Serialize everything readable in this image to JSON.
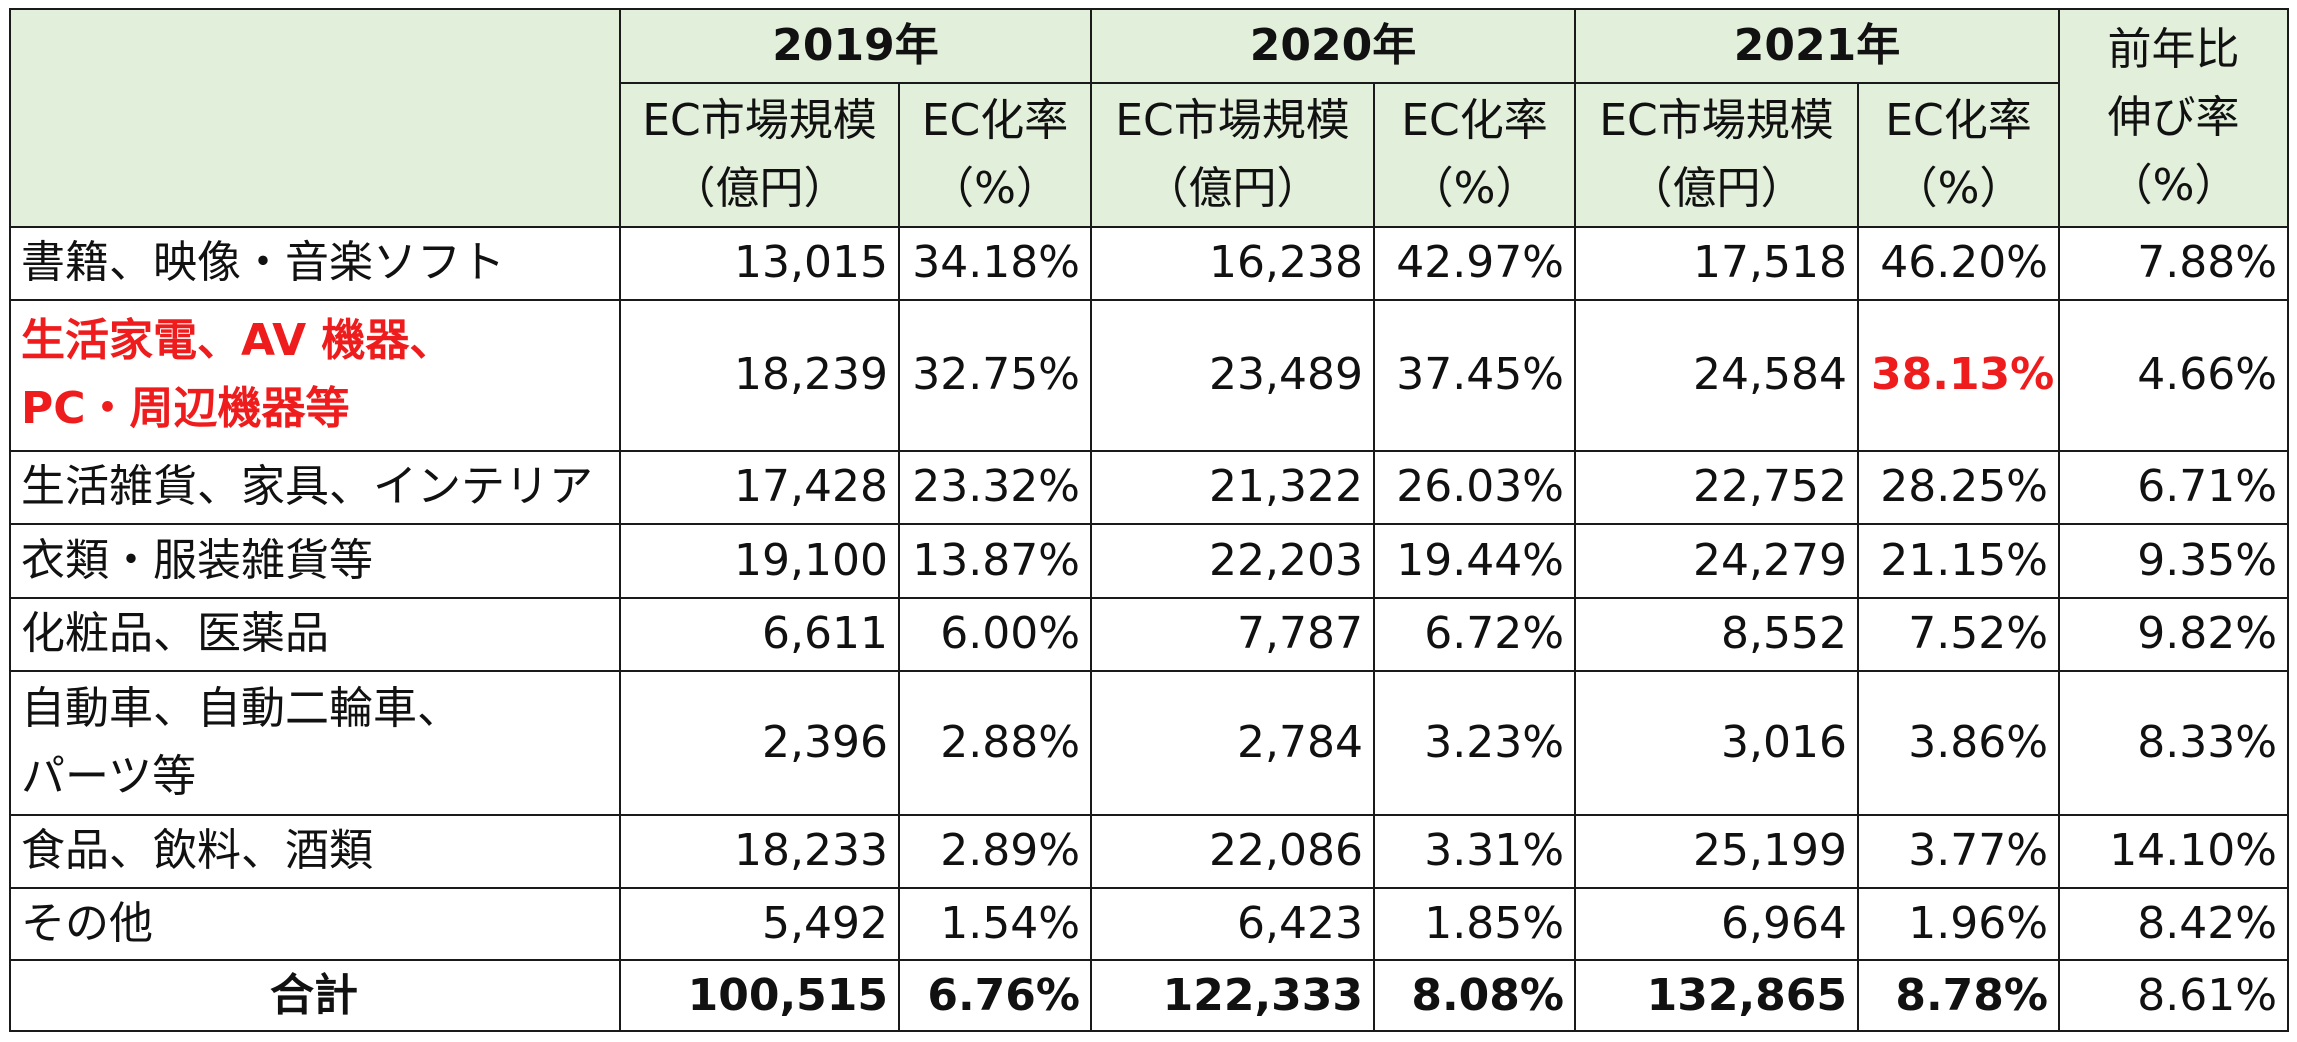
{
  "header": {
    "years": [
      "2019年",
      "2020年",
      "2021年"
    ],
    "market_size_label": "EC市場規模",
    "market_size_unit": "（億円）",
    "ec_rate_label": "EC化率",
    "ec_rate_unit": "（%）",
    "growth_label_1": "前年比",
    "growth_label_2": "伸び率",
    "growth_unit": "（%）"
  },
  "rows": [
    {
      "name_1": "書籍、映像・音楽ソフト",
      "name_2": "",
      "v2019": "13,015",
      "r2019": "34.18%",
      "v2020": "16,238",
      "r2020": "42.97%",
      "v2021": "17,518",
      "r2021": "46.20%",
      "growth": "7.88%"
    },
    {
      "name_1": "生活家電、AV 機器、",
      "name_2": "PC・周辺機器等",
      "v2019": "18,239",
      "r2019": "32.75%",
      "v2020": "23,489",
      "r2020": "37.45%",
      "v2021": "24,584",
      "r2021": "38.13%",
      "growth": "4.66%"
    },
    {
      "name_1": "生活雑貨、家具、インテリア",
      "name_2": "",
      "v2019": "17,428",
      "r2019": "23.32%",
      "v2020": "21,322",
      "r2020": "26.03%",
      "v2021": "22,752",
      "r2021": "28.25%",
      "growth": "6.71%"
    },
    {
      "name_1": "衣類・服装雑貨等",
      "name_2": "",
      "v2019": "19,100",
      "r2019": "13.87%",
      "v2020": "22,203",
      "r2020": "19.44%",
      "v2021": "24,279",
      "r2021": "21.15%",
      "growth": "9.35%"
    },
    {
      "name_1": "化粧品、医薬品",
      "name_2": "",
      "v2019": "6,611",
      "r2019": "6.00%",
      "v2020": "7,787",
      "r2020": "6.72%",
      "v2021": "8,552",
      "r2021": "7.52%",
      "growth": "9.82%"
    },
    {
      "name_1": "自動車、自動二輪車、",
      "name_2": "パーツ等",
      "v2019": "2,396",
      "r2019": "2.88%",
      "v2020": "2,784",
      "r2020": "3.23%",
      "v2021": "3,016",
      "r2021": "3.86%",
      "growth": "8.33%"
    },
    {
      "name_1": "食品、飲料、酒類",
      "name_2": "",
      "v2019": "18,233",
      "r2019": "2.89%",
      "v2020": "22,086",
      "r2020": "3.31%",
      "v2021": "25,199",
      "r2021": "3.77%",
      "growth": "14.10%"
    },
    {
      "name_1": "その他",
      "name_2": "",
      "v2019": "5,492",
      "r2019": "1.54%",
      "v2020": "6,423",
      "r2020": "1.85%",
      "v2021": "6,964",
      "r2021": "1.96%",
      "growth": "8.42%"
    }
  ],
  "total": {
    "name": "合計",
    "v2019": "100,515",
    "r2019": "6.76%",
    "v2020": "122,333",
    "r2020": "8.08%",
    "v2021": "132,865",
    "r2021": "8.78%",
    "growth": "8.61%"
  },
  "colors": {
    "header_bg": "#e2efda",
    "highlight_red": "#ee1c1c",
    "border": "#1a1a1a"
  }
}
